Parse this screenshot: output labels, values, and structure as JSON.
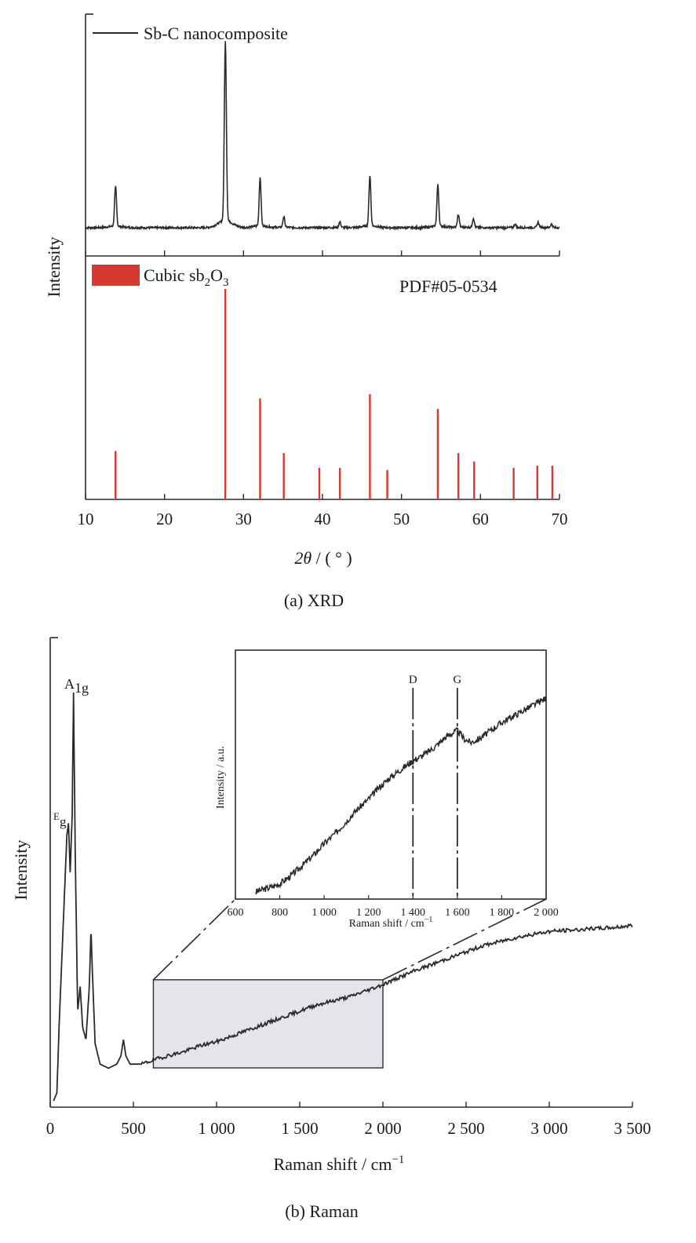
{
  "chart_data": [
    {
      "type": "line",
      "panel_caption": "(a) XRD",
      "xlabel_prefix": "2",
      "xlabel_symbol": "θ",
      "xlabel_unit": " / ( ° )",
      "ylabel": "Intensity",
      "xlim": [
        10,
        70
      ],
      "xticks": [
        10,
        20,
        30,
        40,
        50,
        60,
        70
      ],
      "grid": false,
      "series": [
        {
          "name": "Sb-C nanocomposite",
          "color": "#2a2a2a",
          "baseline": 10,
          "peaks": [
            {
              "x": 13.8,
              "h": 22
            },
            {
              "x": 27.7,
              "h": 100
            },
            {
              "x": 32.1,
              "h": 27
            },
            {
              "x": 35.1,
              "h": 6
            },
            {
              "x": 42.2,
              "h": 3
            },
            {
              "x": 46.0,
              "h": 28
            },
            {
              "x": 54.6,
              "h": 23
            },
            {
              "x": 57.2,
              "h": 7
            },
            {
              "x": 59.1,
              "h": 5
            },
            {
              "x": 64.4,
              "h": 2
            },
            {
              "x": 67.3,
              "h": 3
            },
            {
              "x": 69.0,
              "h": 2
            }
          ]
        }
      ],
      "reference": {
        "name_prefix": "Cubic sb",
        "name_sub1": "2",
        "name_mid": "O",
        "name_sub2": "3",
        "card": "PDF#05-0534",
        "color": "#d9382f",
        "lines": [
          {
            "x": 13.8,
            "h": 23
          },
          {
            "x": 27.7,
            "h": 100
          },
          {
            "x": 32.1,
            "h": 48
          },
          {
            "x": 35.1,
            "h": 22
          },
          {
            "x": 39.6,
            "h": 15
          },
          {
            "x": 42.2,
            "h": 15
          },
          {
            "x": 46.0,
            "h": 50
          },
          {
            "x": 48.2,
            "h": 14
          },
          {
            "x": 54.6,
            "h": 43
          },
          {
            "x": 57.2,
            "h": 22
          },
          {
            "x": 59.2,
            "h": 18
          },
          {
            "x": 64.2,
            "h": 15
          },
          {
            "x": 67.2,
            "h": 16
          },
          {
            "x": 69.1,
            "h": 16
          }
        ]
      }
    },
    {
      "type": "line",
      "panel_caption": "(b) Raman",
      "xlabel": "Raman shift / cm",
      "xlabel_sup": "−1",
      "ylabel": "Intensity",
      "xlim": [
        0,
        3500
      ],
      "xticks": [
        0,
        500,
        1000,
        1500,
        2000,
        2500,
        3000,
        3500
      ],
      "xtick_labels": [
        "0",
        "500",
        "1 000",
        "1 500",
        "2 000",
        "2 500",
        "3 000",
        "3 500"
      ],
      "grid": false,
      "peak_labels": [
        {
          "main": "A",
          "sub": "1g",
          "x": 140
        },
        {
          "main": "E",
          "sub": "g",
          "x": 110
        }
      ],
      "series": [
        {
          "name": "",
          "color": "#2a2a2a",
          "points": [
            [
              20,
              0
            ],
            [
              40,
              2
            ],
            [
              55,
              20
            ],
            [
              70,
              35
            ],
            [
              85,
              50
            ],
            [
              100,
              65
            ],
            [
              110,
              68
            ],
            [
              120,
              56
            ],
            [
              132,
              70
            ],
            [
              140,
              100
            ],
            [
              150,
              62
            ],
            [
              165,
              22
            ],
            [
              180,
              28
            ],
            [
              195,
              18
            ],
            [
              215,
              15
            ],
            [
              235,
              28
            ],
            [
              245,
              42
            ],
            [
              255,
              30
            ],
            [
              270,
              14
            ],
            [
              300,
              9
            ],
            [
              350,
              8
            ],
            [
              400,
              9
            ],
            [
              425,
              11
            ],
            [
              440,
              15
            ],
            [
              455,
              11
            ],
            [
              480,
              9
            ],
            [
              550,
              9
            ],
            [
              620,
              10
            ],
            [
              700,
              11
            ],
            [
              800,
              12
            ],
            [
              900,
              13.5
            ],
            [
              1000,
              14.5
            ],
            [
              1100,
              16
            ],
            [
              1200,
              17.5
            ],
            [
              1300,
              19
            ],
            [
              1400,
              20.5
            ],
            [
              1500,
              22
            ],
            [
              1600,
              23.5
            ],
            [
              1700,
              24.5
            ],
            [
              1800,
              25.5
            ],
            [
              1900,
              27
            ],
            [
              2000,
              28.5
            ],
            [
              2200,
              32
            ],
            [
              2400,
              35
            ],
            [
              2600,
              38
            ],
            [
              2800,
              40
            ],
            [
              3000,
              41.5
            ],
            [
              3200,
              42
            ],
            [
              3400,
              42.5
            ],
            [
              3500,
              43
            ]
          ]
        }
      ],
      "zoom_box": {
        "x": [
          620,
          2000
        ]
      },
      "inset": {
        "xlabel": "Raman shift / cm",
        "xlabel_sup": "−1",
        "ylabel": "Intensity / a.u.",
        "xlim": [
          600,
          2000
        ],
        "xticks": [
          600,
          800,
          1000,
          1200,
          1400,
          1600,
          1800,
          2000
        ],
        "xtick_labels": [
          "600",
          "800",
          "1 000",
          "1 200",
          "1 400",
          "1 600",
          "1 800",
          "2 000"
        ],
        "band_markers": [
          {
            "label": "D",
            "x": 1400
          },
          {
            "label": "G",
            "x": 1600
          }
        ],
        "points": [
          [
            690,
            2
          ],
          [
            750,
            4
          ],
          [
            800,
            6
          ],
          [
            850,
            10
          ],
          [
            900,
            15
          ],
          [
            950,
            20
          ],
          [
            1000,
            26
          ],
          [
            1050,
            31
          ],
          [
            1100,
            37
          ],
          [
            1150,
            43
          ],
          [
            1200,
            48
          ],
          [
            1250,
            54
          ],
          [
            1300,
            59
          ],
          [
            1350,
            63
          ],
          [
            1400,
            67
          ],
          [
            1450,
            70
          ],
          [
            1500,
            74
          ],
          [
            1550,
            79
          ],
          [
            1600,
            82
          ],
          [
            1630,
            78
          ],
          [
            1660,
            76
          ],
          [
            1700,
            78
          ],
          [
            1750,
            82
          ],
          [
            1800,
            86
          ],
          [
            1850,
            89
          ],
          [
            1900,
            92
          ],
          [
            1950,
            95
          ],
          [
            2000,
            98
          ]
        ]
      }
    }
  ]
}
